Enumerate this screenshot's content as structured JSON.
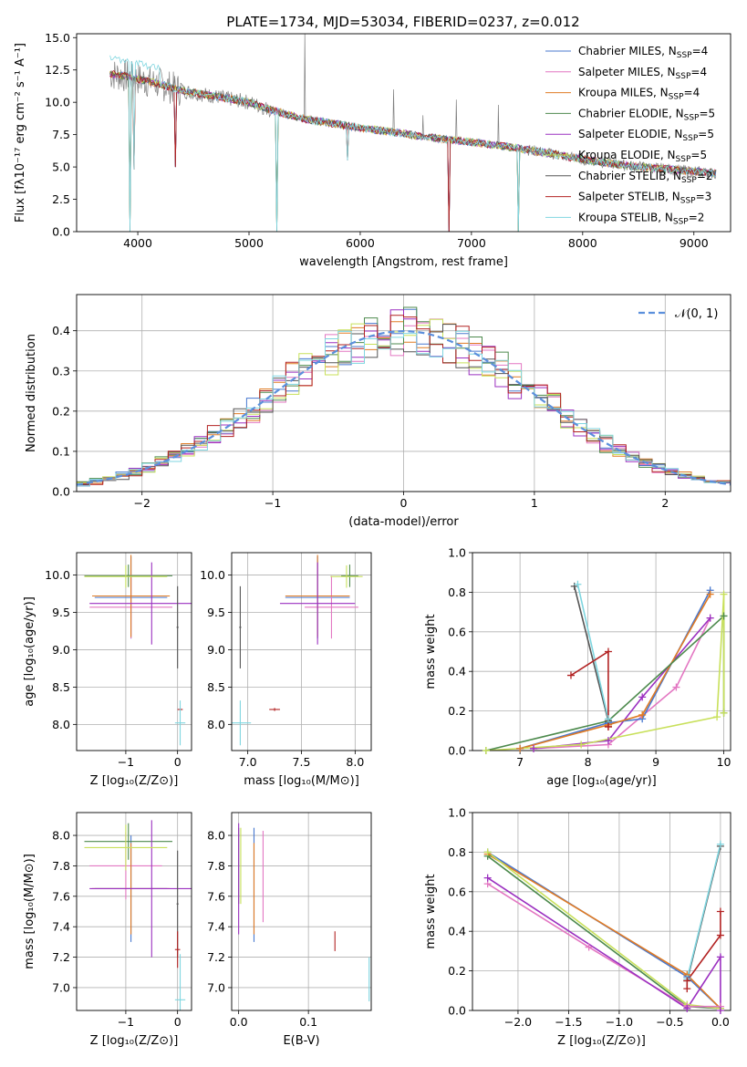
{
  "figure": {
    "title": "PLATE=1734, MJD=53034, FIBERID=0237, z=0.012",
    "colors": [
      "#4878cf",
      "#e377c2",
      "#e07b24",
      "#4d8a4d",
      "#9b30c0",
      "#c8e05a",
      "#555555",
      "#b22222",
      "#7fd6e0"
    ],
    "gaussian_color": "#5b8fdc",
    "observed_color": "#7f7f7f"
  },
  "chart_data": [
    {
      "id": "spectrum",
      "type": "line",
      "xlabel": "wavelength [Angstrom, rest frame]",
      "ylabel": "Flux [fλ10⁻¹⁷ erg cm⁻² s⁻¹ A⁻¹]",
      "xlim": [
        3450,
        9330
      ],
      "ylim": [
        0,
        15.3
      ],
      "xticks": [
        4000,
        5000,
        6000,
        7000,
        8000,
        9000
      ],
      "yticks": [
        0.0,
        2.5,
        5.0,
        7.5,
        10.0,
        12.5,
        15.0
      ],
      "ytick_labels": [
        "0.0",
        "2.5",
        "5.0",
        "7.5",
        "10.0",
        "12.5",
        "15.0"
      ],
      "legend_position": "top-right",
      "continuum": {
        "x": [
          3750,
          3900,
          4000,
          4200,
          4400,
          4600,
          4800,
          5000,
          5200,
          5500,
          5800,
          6000,
          6300,
          6600,
          7000,
          7300,
          7600,
          8000,
          8400,
          8800,
          9200
        ],
        "y": [
          12.2,
          12.0,
          11.8,
          11.4,
          10.9,
          10.6,
          10.3,
          10.0,
          9.4,
          8.7,
          8.3,
          8.0,
          7.7,
          7.3,
          6.9,
          6.6,
          6.2,
          5.6,
          5.1,
          4.8,
          4.5
        ]
      },
      "series": [
        {
          "name": "Chabrier MILES, N",
          "sub": "SSP",
          "suffix": "=4"
        },
        {
          "name": "Salpeter MILES, N",
          "sub": "SSP",
          "suffix": "=4"
        },
        {
          "name": "Kroupa MILES, N",
          "sub": "SSP",
          "suffix": "=4"
        },
        {
          "name": "Chabrier ELODIE, N",
          "sub": "SSP",
          "suffix": "=5"
        },
        {
          "name": "Salpeter ELODIE, N",
          "sub": "SSP",
          "suffix": "=5"
        },
        {
          "name": "Kroupa ELODIE, N",
          "sub": "SSP",
          "suffix": "=5"
        },
        {
          "name": "Chabrier STELIB, N",
          "sub": "SSP",
          "suffix": "=2"
        },
        {
          "name": "Salpeter STELIB, N",
          "sub": "SSP",
          "suffix": "=3"
        },
        {
          "name": "Kroupa STELIB, N",
          "sub": "SSP",
          "suffix": "=2"
        }
      ]
    },
    {
      "id": "residuals",
      "type": "line",
      "xlabel": "(data-model)/error",
      "ylabel": "Normed distribution",
      "xlim": [
        -2.5,
        2.5
      ],
      "ylim": [
        0,
        0.49
      ],
      "xticks": [
        -2,
        -1,
        0,
        1,
        2
      ],
      "xtick_labels": [
        "−2",
        "−1",
        "0",
        "1",
        "2"
      ],
      "yticks": [
        0.0,
        0.1,
        0.2,
        0.3,
        0.4
      ],
      "ytick_labels": [
        "0.0",
        "0.1",
        "0.2",
        "0.3",
        "0.4"
      ],
      "grid": true,
      "legend": "𝒩(0, 1)",
      "legend_position": "top-right",
      "bin_width": 0.1
    },
    {
      "id": "age_vs_Z",
      "type": "scatter",
      "xlabel": "Z [log₁₀(Z/Z⊙)]",
      "ylabel": "age  [log₁₀(age/yr)]",
      "xlim": [
        -1.95,
        0.27
      ],
      "ylim": [
        7.65,
        10.3
      ],
      "xticks": [
        -1,
        0
      ],
      "xtick_labels": [
        "−1",
        "0"
      ],
      "yticks": [
        8.0,
        8.5,
        9.0,
        9.5,
        10.0
      ],
      "ytick_labels": [
        "8.0",
        "8.5",
        "9.0",
        "9.5",
        "10.0"
      ],
      "grid": true,
      "crosses": [
        {
          "s": 0,
          "x": -0.9,
          "xerr": 0.7,
          "y": 9.7,
          "yerr": 0.55
        },
        {
          "s": 1,
          "x": -0.9,
          "xerr": 0.8,
          "y": 9.57,
          "yerr": 0.42
        },
        {
          "s": 2,
          "x": -0.9,
          "xerr": 0.75,
          "y": 9.72,
          "yerr": 0.55
        },
        {
          "s": 3,
          "x": -0.95,
          "xerr": 0.85,
          "y": 9.99,
          "yerr": 0.15
        },
        {
          "s": 4,
          "x": -0.5,
          "xerr": 1.2,
          "y": 9.62,
          "yerr": 0.55
        },
        {
          "s": 5,
          "x": -1.0,
          "xerr": 0.8,
          "y": 9.98,
          "yerr": 0.15
        },
        {
          "s": 6,
          "x": 0.0,
          "xerr": 0.02,
          "y": 9.3,
          "yerr": 0.55
        },
        {
          "s": 7,
          "x": 0.05,
          "xerr": 0.05,
          "y": 8.2,
          "yerr": 0.02
        },
        {
          "s": 8,
          "x": 0.05,
          "xerr": 0.1,
          "y": 8.02,
          "yerr": 0.3
        }
      ]
    },
    {
      "id": "age_vs_mass",
      "type": "scatter",
      "xlabel": "mass [log₁₀(M/M⊙)]",
      "ylabel": "",
      "xlim": [
        6.85,
        8.15
      ],
      "ylim": [
        7.65,
        10.3
      ],
      "xticks": [
        7.0,
        7.5,
        8.0
      ],
      "xtick_labels": [
        "7.0",
        "7.5",
        "8.0"
      ],
      "yticks": [
        8.0,
        8.5,
        9.0,
        9.5,
        10.0
      ],
      "ytick_labels": [
        "8.0",
        "8.5",
        "9.0",
        "9.5",
        "10.0"
      ],
      "grid": true,
      "crosses": [
        {
          "s": 0,
          "x": 7.65,
          "xerr": 0.3,
          "y": 9.7,
          "yerr": 0.55
        },
        {
          "s": 1,
          "x": 7.78,
          "xerr": 0.25,
          "y": 9.57,
          "yerr": 0.42
        },
        {
          "s": 2,
          "x": 7.65,
          "xerr": 0.3,
          "y": 9.72,
          "yerr": 0.55
        },
        {
          "s": 3,
          "x": 7.95,
          "xerr": 0.08,
          "y": 9.99,
          "yerr": 0.15
        },
        {
          "s": 4,
          "x": 7.65,
          "xerr": 0.35,
          "y": 9.62,
          "yerr": 0.55
        },
        {
          "s": 5,
          "x": 7.92,
          "xerr": 0.15,
          "y": 9.98,
          "yerr": 0.15
        },
        {
          "s": 6,
          "x": 6.93,
          "xerr": 0.01,
          "y": 9.3,
          "yerr": 0.55
        },
        {
          "s": 7,
          "x": 7.25,
          "xerr": 0.05,
          "y": 8.2,
          "yerr": 0.02
        },
        {
          "s": 8,
          "x": 6.93,
          "xerr": 0.1,
          "y": 8.02,
          "yerr": 0.3
        }
      ]
    },
    {
      "id": "weight_vs_age",
      "type": "line",
      "xlabel": "age  [log₁₀(age/yr)]",
      "ylabel": "mass weight",
      "xlim": [
        6.3,
        10.1
      ],
      "ylim": [
        0,
        1
      ],
      "xticks": [
        7,
        8,
        9,
        10
      ],
      "xtick_labels": [
        "7",
        "8",
        "9",
        "10"
      ],
      "yticks": [
        0.0,
        0.2,
        0.4,
        0.6,
        0.8,
        1.0
      ],
      "ytick_labels": [
        "0.0",
        "0.2",
        "0.4",
        "0.6",
        "0.8",
        "1.0"
      ],
      "grid": true,
      "lines": [
        {
          "s": 1,
          "x": [
            7.2,
            8.3,
            9.3,
            9.8
          ],
          "y": [
            0.01,
            0.03,
            0.32,
            0.67
          ]
        },
        {
          "s": 4,
          "x": [
            7.2,
            8.3,
            8.8,
            9.8
          ],
          "y": [
            0.01,
            0.05,
            0.27,
            0.67
          ]
        },
        {
          "s": 0,
          "x": [
            7.0,
            8.3,
            8.8,
            9.8
          ],
          "y": [
            0.01,
            0.14,
            0.16,
            0.81
          ]
        },
        {
          "s": 2,
          "x": [
            7.0,
            8.3,
            8.8,
            9.8
          ],
          "y": [
            0.01,
            0.13,
            0.18,
            0.79
          ]
        },
        {
          "s": 3,
          "x": [
            6.5,
            8.3,
            10.0,
            10.0
          ],
          "y": [
            0.0,
            0.15,
            0.68,
            0.19
          ]
        },
        {
          "s": 5,
          "x": [
            6.5,
            7.9,
            9.9,
            10.0,
            10.0
          ],
          "y": [
            0.0,
            0.03,
            0.17,
            0.79,
            0.19
          ]
        },
        {
          "s": 6,
          "x": [
            7.8,
            8.3
          ],
          "y": [
            0.83,
            0.15
          ]
        },
        {
          "s": 8,
          "x": [
            7.85,
            8.3
          ],
          "y": [
            0.84,
            0.16
          ]
        },
        {
          "s": 7,
          "x": [
            7.75,
            8.3,
            8.3,
            8.3
          ],
          "y": [
            0.38,
            0.5,
            0.12,
            0.12
          ]
        }
      ]
    },
    {
      "id": "mass_vs_Z",
      "type": "scatter",
      "xlabel": "Z [log₁₀(Z/Z⊙)]",
      "ylabel": "mass [log₁₀(M/M⊙)]",
      "xlim": [
        -1.95,
        0.27
      ],
      "ylim": [
        6.85,
        8.15
      ],
      "xticks": [
        -1,
        0
      ],
      "xtick_labels": [
        "−1",
        "0"
      ],
      "yticks": [
        7.0,
        7.2,
        7.4,
        7.6,
        7.8,
        8.0
      ],
      "ytick_labels": [
        "7.0",
        "7.2",
        "7.4",
        "7.6",
        "7.8",
        "8.0"
      ],
      "grid": true,
      "crosses": [
        {
          "s": 0,
          "x": -0.9,
          "xerr": 0.7,
          "y": 7.65,
          "yerr": 0.35
        },
        {
          "s": 1,
          "x": -1.0,
          "xerr": 0.7,
          "y": 7.8,
          "yerr": 0.22
        },
        {
          "s": 2,
          "x": -0.9,
          "xerr": 0.75,
          "y": 7.65,
          "yerr": 0.3
        },
        {
          "s": 3,
          "x": -0.95,
          "xerr": 0.85,
          "y": 7.96,
          "yerr": 0.12
        },
        {
          "s": 4,
          "x": -0.5,
          "xerr": 1.2,
          "y": 7.65,
          "yerr": 0.45
        },
        {
          "s": 5,
          "x": -1.0,
          "xerr": 0.8,
          "y": 7.92,
          "yerr": 0.15
        },
        {
          "s": 6,
          "x": 0.0,
          "xerr": 0.02,
          "y": 7.55,
          "yerr": 0.35
        },
        {
          "s": 7,
          "x": 0.0,
          "xerr": 0.05,
          "y": 7.25,
          "yerr": 0.12
        },
        {
          "s": 8,
          "x": 0.05,
          "xerr": 0.1,
          "y": 6.92,
          "yerr": 0.3
        }
      ]
    },
    {
      "id": "mass_vs_ebv",
      "type": "scatter",
      "xlabel": "E(B-V)",
      "ylabel": "",
      "xlim": [
        -0.01,
        0.19
      ],
      "ylim": [
        6.85,
        8.15
      ],
      "xticks": [
        0.0,
        0.1
      ],
      "xtick_labels": [
        "0.0",
        "0.1"
      ],
      "yticks": [
        7.0,
        7.2,
        7.4,
        7.6,
        7.8,
        8.0
      ],
      "ytick_labels": [
        "7.0",
        "7.2",
        "7.4",
        "7.6",
        "7.8",
        "8.0"
      ],
      "grid": true,
      "vlines": [
        {
          "s": 0,
          "x": 0.022,
          "y0": 7.3,
          "y1": 8.05
        },
        {
          "s": 1,
          "x": 0.035,
          "y0": 7.43,
          "y1": 8.03
        },
        {
          "s": 2,
          "x": 0.022,
          "y0": 7.35,
          "y1": 7.95
        },
        {
          "s": 3,
          "x": 0.0,
          "y0": 7.55,
          "y1": 8.05
        },
        {
          "s": 4,
          "x": 0.0,
          "y0": 7.35,
          "y1": 8.08
        },
        {
          "s": 5,
          "x": 0.003,
          "y0": 7.55,
          "y1": 8.05
        },
        {
          "s": 7,
          "x": 0.138,
          "y0": 7.24,
          "y1": 7.37
        },
        {
          "s": 8,
          "x": 0.187,
          "y0": 6.91,
          "y1": 7.2
        }
      ]
    },
    {
      "id": "weight_vs_Z",
      "type": "line",
      "xlabel": "Z [log₁₀(Z/Z⊙)]",
      "ylabel": "mass weight",
      "xlim": [
        -2.45,
        0.1
      ],
      "ylim": [
        0,
        1
      ],
      "xticks": [
        -2.0,
        -1.5,
        -1.0,
        -0.5,
        0.0
      ],
      "xtick_labels": [
        "−2.0",
        "−1.5",
        "−1.0",
        "−0.5",
        "0.0"
      ],
      "yticks": [
        0.0,
        0.2,
        0.4,
        0.6,
        0.8,
        1.0
      ],
      "ytick_labels": [
        "0.0",
        "0.2",
        "0.4",
        "0.6",
        "0.8",
        "1.0"
      ],
      "grid": true,
      "lines": [
        {
          "s": 0,
          "x": [
            -2.3,
            -0.33,
            0.0
          ],
          "y": [
            0.8,
            0.17,
            0.01
          ]
        },
        {
          "s": 2,
          "x": [
            -2.3,
            -0.33,
            0.0
          ],
          "y": [
            0.79,
            0.18,
            0.01
          ]
        },
        {
          "s": 3,
          "x": [
            -2.3,
            -0.33,
            0.0
          ],
          "y": [
            0.78,
            0.02,
            0.01
          ]
        },
        {
          "s": 5,
          "x": [
            -2.3,
            -0.33,
            0.0
          ],
          "y": [
            0.8,
            0.03,
            0.01
          ]
        },
        {
          "s": 1,
          "x": [
            -2.3,
            -1.3,
            -0.33,
            0.0
          ],
          "y": [
            0.64,
            0.32,
            0.02,
            0.02
          ]
        },
        {
          "s": 4,
          "x": [
            -2.3,
            -0.33,
            0.0,
            0.0
          ],
          "y": [
            0.67,
            0.01,
            0.27,
            0.0
          ]
        },
        {
          "s": 6,
          "x": [
            -0.33,
            0.0
          ],
          "y": [
            0.15,
            0.83
          ]
        },
        {
          "s": 8,
          "x": [
            -0.33,
            0.0
          ],
          "y": [
            0.16,
            0.84
          ]
        },
        {
          "s": 7,
          "x": [
            -0.33,
            -0.33,
            0.0,
            0.0
          ],
          "y": [
            0.11,
            0.15,
            0.38,
            0.5
          ]
        }
      ]
    }
  ]
}
